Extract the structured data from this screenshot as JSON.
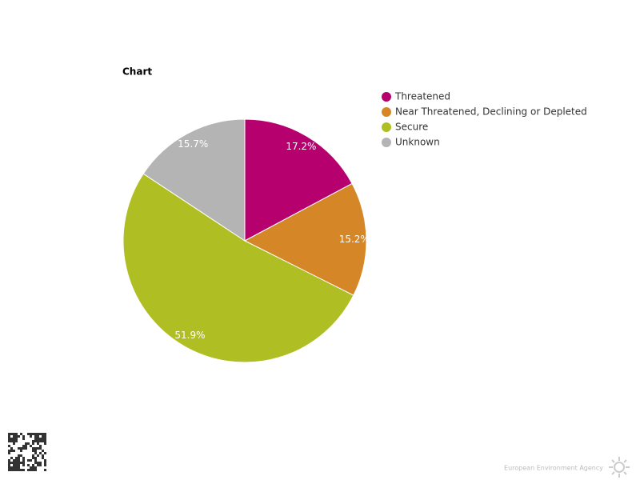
{
  "chart_data": {
    "type": "pie",
    "title": "Chart",
    "categories": [
      "Threatened",
      "Near Threatened, Declining or Depleted",
      "Secure",
      "Unknown"
    ],
    "values": [
      17.2,
      15.2,
      51.9,
      15.7
    ],
    "value_labels": [
      "17.2%",
      "15.2%",
      "51.9%",
      "15.7%"
    ],
    "colors": [
      "#b5006e",
      "#d58626",
      "#afbe22",
      "#b4b4b4"
    ],
    "legend": "right"
  },
  "footer": {
    "credit": "European Environment Agency"
  }
}
